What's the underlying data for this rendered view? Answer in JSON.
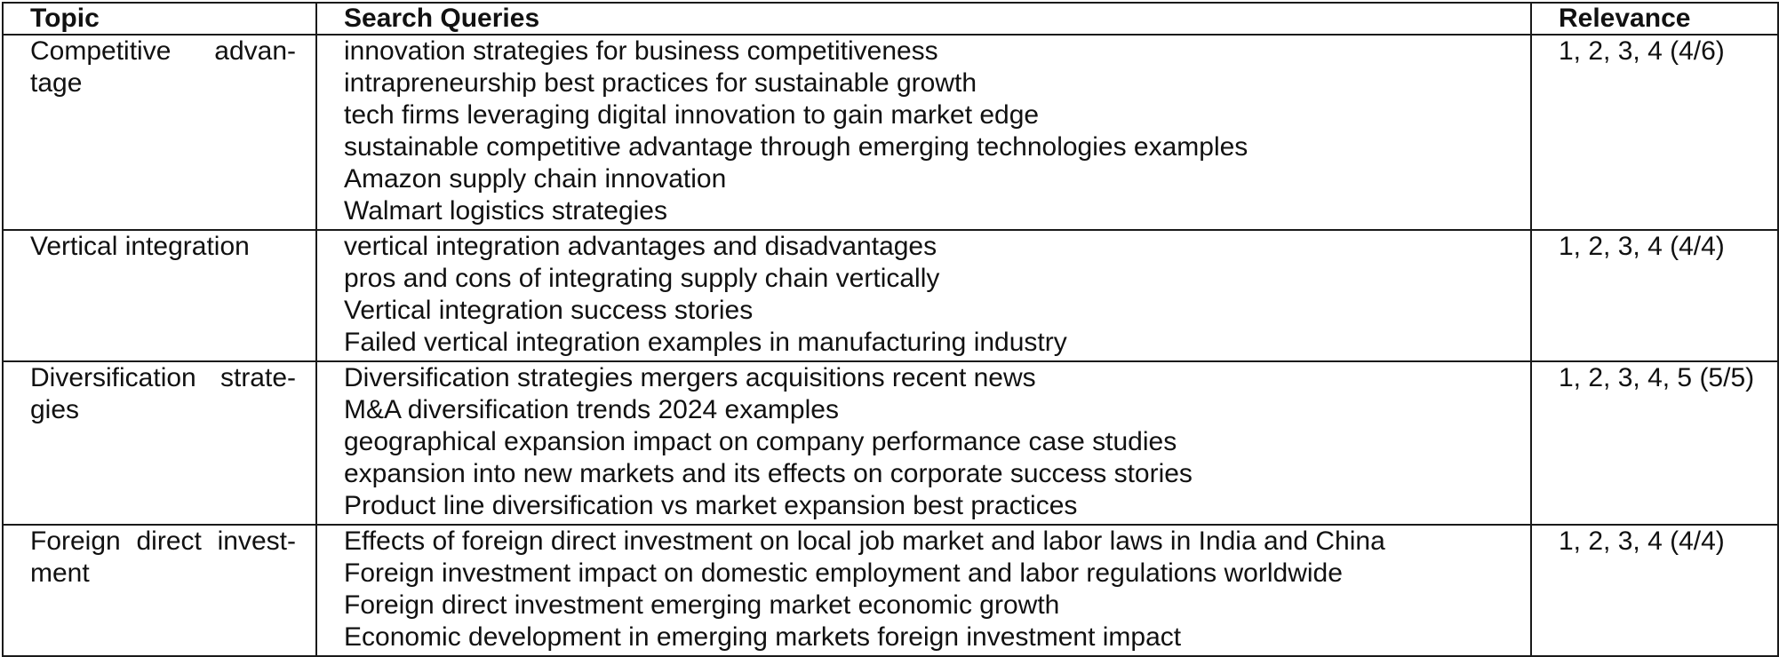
{
  "table": {
    "headers": {
      "topic": "Topic",
      "queries": "Search Queries",
      "relevance": "Relevance"
    },
    "rows": [
      {
        "topic_lines": [
          "Competitive advan-",
          "tage"
        ],
        "queries": [
          "innovation strategies for business competitiveness",
          "intrapreneurship best practices for sustainable growth",
          "tech firms leveraging digital innovation to gain market edge",
          "sustainable competitive advantage through emerging technologies examples",
          "Amazon supply chain innovation",
          "Walmart logistics strategies"
        ],
        "relevance": "1, 2, 3, 4 (4/6)"
      },
      {
        "topic_lines": [
          "Vertical integration"
        ],
        "queries": [
          "vertical integration advantages and disadvantages",
          "pros and cons of integrating supply chain vertically",
          "Vertical integration success stories",
          "Failed vertical integration examples in manufacturing industry"
        ],
        "relevance": "1, 2, 3, 4 (4/4)"
      },
      {
        "topic_lines": [
          "Diversification strate-",
          "gies"
        ],
        "queries": [
          "Diversification strategies mergers acquisitions recent news",
          "M&A diversification trends 2024 examples",
          "geographical expansion impact on company performance case studies",
          "expansion into new markets and its effects on corporate success stories",
          "Product line diversification vs market expansion best practices"
        ],
        "relevance": "1, 2, 3, 4, 5 (5/5)"
      },
      {
        "topic_lines": [
          "Foreign direct invest-",
          "ment"
        ],
        "queries": [
          "Effects of foreign direct investment on local job market and labor laws in India and China",
          "Foreign investment impact on domestic employment and labor regulations worldwide",
          "Foreign direct investment emerging market economic growth",
          "Economic development in emerging markets foreign investment impact"
        ],
        "relevance": "1, 2, 3, 4 (4/4)"
      }
    ]
  }
}
